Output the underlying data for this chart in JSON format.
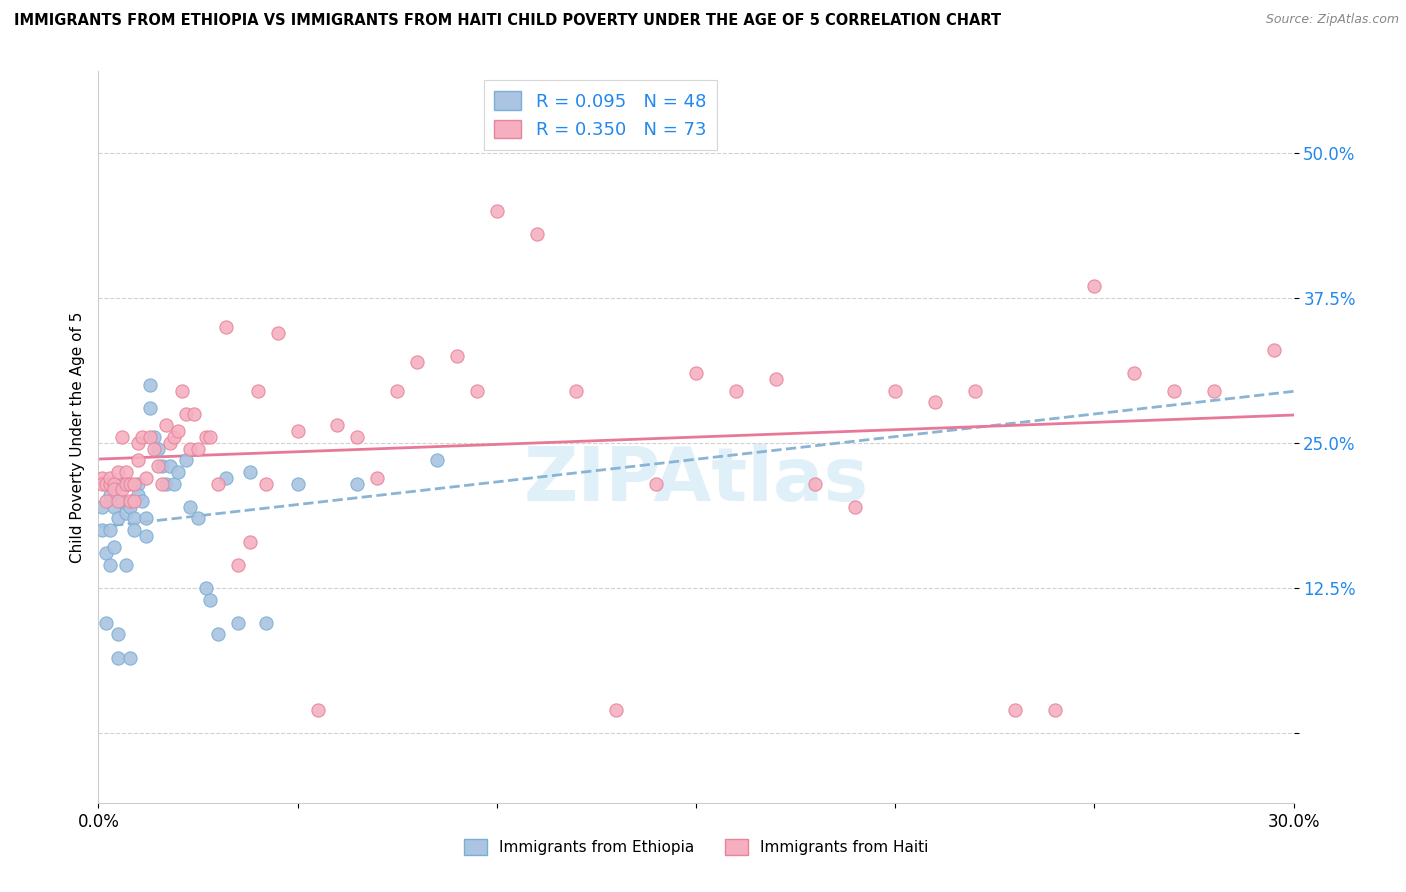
{
  "title": "IMMIGRANTS FROM ETHIOPIA VS IMMIGRANTS FROM HAITI CHILD POVERTY UNDER THE AGE OF 5 CORRELATION CHART",
  "source": "Source: ZipAtlas.com",
  "ylabel": "Child Poverty Under the Age of 5",
  "xmin": 0.0,
  "xmax": 0.3,
  "ymin": -0.06,
  "ymax": 0.57,
  "yticks": [
    0.0,
    0.125,
    0.25,
    0.375,
    0.5
  ],
  "ytick_labels": [
    "",
    "12.5%",
    "25.0%",
    "37.5%",
    "50.0%"
  ],
  "xticks": [
    0.0,
    0.05,
    0.1,
    0.15,
    0.2,
    0.25,
    0.3
  ],
  "xtick_labels": [
    "0.0%",
    "",
    "",
    "",
    "",
    "",
    "30.0%"
  ],
  "legend_r1": "R = 0.095",
  "legend_n1": "N = 48",
  "legend_r2": "R = 0.350",
  "legend_n2": "N = 73",
  "color_ethiopia": "#aac4e2",
  "color_haiti": "#f5afc0",
  "color_edge_ethiopia": "#7aafd4",
  "color_edge_haiti": "#e8849a",
  "color_line_ethiopia": "#8ab4d4",
  "color_line_haiti": "#e87898",
  "watermark": "ZIPAtlas",
  "ethiopia_scatter_x": [
    0.001,
    0.001,
    0.002,
    0.002,
    0.003,
    0.003,
    0.003,
    0.004,
    0.004,
    0.005,
    0.005,
    0.005,
    0.006,
    0.006,
    0.007,
    0.007,
    0.007,
    0.008,
    0.008,
    0.009,
    0.009,
    0.01,
    0.01,
    0.011,
    0.012,
    0.012,
    0.013,
    0.013,
    0.014,
    0.015,
    0.016,
    0.017,
    0.018,
    0.019,
    0.02,
    0.022,
    0.023,
    0.025,
    0.027,
    0.028,
    0.03,
    0.032,
    0.035,
    0.038,
    0.042,
    0.05,
    0.065,
    0.085
  ],
  "ethiopia_scatter_y": [
    0.195,
    0.175,
    0.155,
    0.095,
    0.205,
    0.175,
    0.145,
    0.195,
    0.16,
    0.185,
    0.085,
    0.065,
    0.215,
    0.2,
    0.215,
    0.19,
    0.145,
    0.195,
    0.065,
    0.185,
    0.175,
    0.215,
    0.205,
    0.2,
    0.185,
    0.17,
    0.28,
    0.3,
    0.255,
    0.245,
    0.23,
    0.215,
    0.23,
    0.215,
    0.225,
    0.235,
    0.195,
    0.185,
    0.125,
    0.115,
    0.085,
    0.22,
    0.095,
    0.225,
    0.095,
    0.215,
    0.215,
    0.235
  ],
  "haiti_scatter_x": [
    0.001,
    0.001,
    0.002,
    0.002,
    0.003,
    0.003,
    0.004,
    0.004,
    0.005,
    0.005,
    0.006,
    0.006,
    0.007,
    0.007,
    0.008,
    0.008,
    0.009,
    0.009,
    0.01,
    0.01,
    0.011,
    0.012,
    0.013,
    0.014,
    0.015,
    0.016,
    0.017,
    0.018,
    0.019,
    0.02,
    0.021,
    0.022,
    0.023,
    0.024,
    0.025,
    0.027,
    0.028,
    0.03,
    0.032,
    0.035,
    0.038,
    0.04,
    0.042,
    0.045,
    0.05,
    0.055,
    0.06,
    0.065,
    0.07,
    0.075,
    0.08,
    0.09,
    0.095,
    0.1,
    0.11,
    0.12,
    0.13,
    0.14,
    0.15,
    0.16,
    0.17,
    0.18,
    0.19,
    0.2,
    0.21,
    0.22,
    0.23,
    0.24,
    0.25,
    0.26,
    0.27,
    0.28,
    0.295
  ],
  "haiti_scatter_y": [
    0.22,
    0.215,
    0.215,
    0.2,
    0.215,
    0.22,
    0.215,
    0.21,
    0.225,
    0.2,
    0.255,
    0.21,
    0.225,
    0.215,
    0.215,
    0.2,
    0.215,
    0.2,
    0.235,
    0.25,
    0.255,
    0.22,
    0.255,
    0.245,
    0.23,
    0.215,
    0.265,
    0.25,
    0.255,
    0.26,
    0.295,
    0.275,
    0.245,
    0.275,
    0.245,
    0.255,
    0.255,
    0.215,
    0.35,
    0.145,
    0.165,
    0.295,
    0.215,
    0.345,
    0.26,
    0.02,
    0.265,
    0.255,
    0.22,
    0.295,
    0.32,
    0.325,
    0.295,
    0.45,
    0.43,
    0.295,
    0.02,
    0.215,
    0.31,
    0.295,
    0.305,
    0.215,
    0.195,
    0.295,
    0.285,
    0.295,
    0.02,
    0.02,
    0.385,
    0.31,
    0.295,
    0.295,
    0.33
  ]
}
